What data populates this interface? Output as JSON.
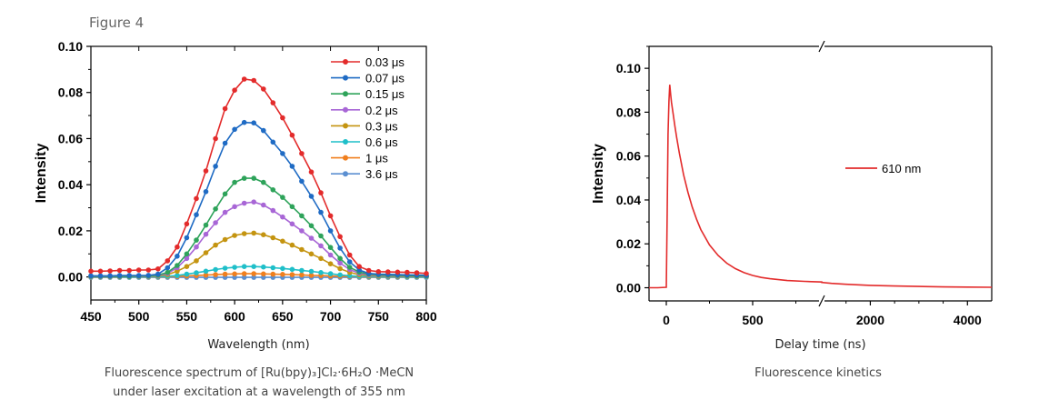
{
  "figure_label": "Figure 4",
  "chart_data": [
    {
      "type": "line",
      "xlabel": "Wavelength (nm)",
      "ylabel": "Intensity",
      "xlim": [
        450,
        800
      ],
      "ylim": [
        -0.01,
        0.1
      ],
      "xticks": [
        "450",
        "500",
        "550",
        "600",
        "650",
        "700",
        "750",
        "800"
      ],
      "yticks": [
        "0.00",
        "0.02",
        "0.04",
        "0.06",
        "0.08",
        "0.10"
      ],
      "legend_position": "top-right",
      "x": [
        450,
        460,
        470,
        480,
        490,
        500,
        510,
        520,
        530,
        540,
        550,
        560,
        570,
        580,
        590,
        600,
        610,
        620,
        630,
        640,
        650,
        660,
        670,
        680,
        690,
        700,
        710,
        720,
        730,
        740,
        750,
        760,
        770,
        780,
        790,
        800
      ],
      "series": [
        {
          "name": "0.03 μs",
          "color": "#e32b2b",
          "values": [
            0.0025,
            0.0025,
            0.0026,
            0.0028,
            0.0028,
            0.003,
            0.003,
            0.0035,
            0.007,
            0.013,
            0.023,
            0.034,
            0.046,
            0.06,
            0.073,
            0.081,
            0.0858,
            0.0852,
            0.0815,
            0.0755,
            0.069,
            0.0615,
            0.0535,
            0.0455,
            0.0365,
            0.0265,
            0.0175,
            0.0095,
            0.0045,
            0.0028,
            0.0023,
            0.0022,
            0.0021,
            0.002,
            0.0018,
            0.0015
          ]
        },
        {
          "name": "0.07 μs",
          "color": "#1f6bc4",
          "values": [
            0.0005,
            0.0005,
            0.0005,
            0.0006,
            0.0006,
            0.0006,
            0.0007,
            0.0012,
            0.004,
            0.009,
            0.017,
            0.027,
            0.037,
            0.048,
            0.058,
            0.064,
            0.067,
            0.0668,
            0.0635,
            0.0585,
            0.0535,
            0.048,
            0.0415,
            0.035,
            0.028,
            0.02,
            0.0125,
            0.0065,
            0.003,
            0.0015,
            0.0012,
            0.0011,
            0.001,
            0.0009,
            0.0008,
            0.0007
          ]
        },
        {
          "name": "0.15 μs",
          "color": "#2ea35a",
          "values": [
            0.0003,
            0.0003,
            0.0003,
            0.0003,
            0.0003,
            0.0004,
            0.0005,
            0.0008,
            0.002,
            0.005,
            0.01,
            0.016,
            0.0225,
            0.0295,
            0.036,
            0.041,
            0.0428,
            0.0428,
            0.041,
            0.0378,
            0.0345,
            0.0305,
            0.0265,
            0.0222,
            0.0178,
            0.0128,
            0.008,
            0.0042,
            0.0021,
            0.0012,
            0.0009,
            0.0008,
            0.0007,
            0.0006,
            0.0005,
            0.0004
          ]
        },
        {
          "name": "0.2 μs",
          "color": "#a866d6",
          "values": [
            0.0002,
            0.0002,
            0.0002,
            0.0002,
            0.0003,
            0.0003,
            0.0004,
            0.0006,
            0.0015,
            0.004,
            0.008,
            0.013,
            0.0185,
            0.0235,
            0.028,
            0.0305,
            0.032,
            0.0325,
            0.0312,
            0.0288,
            0.026,
            0.023,
            0.02,
            0.0168,
            0.0135,
            0.0095,
            0.006,
            0.0032,
            0.0016,
            0.0009,
            0.0007,
            0.0006,
            0.0005,
            0.0005,
            0.0004,
            0.0003
          ]
        },
        {
          "name": "0.3 μs",
          "color": "#c49410",
          "values": [
            0.0001,
            0.0001,
            0.0001,
            0.0001,
            0.0002,
            0.0002,
            0.0003,
            0.0004,
            0.001,
            0.0025,
            0.0045,
            0.007,
            0.0105,
            0.0138,
            0.0162,
            0.018,
            0.0188,
            0.019,
            0.0183,
            0.017,
            0.0155,
            0.0138,
            0.0119,
            0.01,
            0.008,
            0.0057,
            0.0036,
            0.002,
            0.001,
            0.0006,
            0.0004,
            0.0004,
            0.0003,
            0.0003,
            0.0002,
            0.0002
          ]
        },
        {
          "name": "0.6 μs",
          "color": "#1fbfc9",
          "values": [
            0.0,
            0.0,
            0.0,
            0.0,
            0.0,
            0.0,
            0.0001,
            0.0001,
            0.0003,
            0.0006,
            0.0012,
            0.0018,
            0.0025,
            0.0032,
            0.0038,
            0.0042,
            0.0045,
            0.0045,
            0.0043,
            0.004,
            0.0037,
            0.0033,
            0.0028,
            0.0024,
            0.0019,
            0.0014,
            0.0009,
            0.0005,
            0.0003,
            0.0002,
            0.0001,
            0.0001,
            0.0001,
            0.0,
            0.0,
            0.0
          ]
        },
        {
          "name": "1 μs",
          "color": "#f07f1e",
          "values": [
            0.0,
            0.0,
            0.0,
            0.0,
            0.0,
            0.0,
            0.0,
            0.0,
            0.0001,
            0.0002,
            0.0004,
            0.0006,
            0.0008,
            0.001,
            0.0012,
            0.0013,
            0.0014,
            0.0014,
            0.0013,
            0.0012,
            0.0011,
            0.001,
            0.0009,
            0.0007,
            0.0006,
            0.0004,
            0.0003,
            0.0002,
            0.0001,
            0.0,
            0.0,
            0.0,
            0.0,
            0.0,
            0.0,
            0.0
          ]
        },
        {
          "name": "3.6 μs",
          "color": "#5b8fd1",
          "values": [
            -0.0002,
            -0.0002,
            -0.0002,
            -0.0002,
            -0.0002,
            -0.0002,
            -0.0002,
            -0.0002,
            -0.0002,
            -0.0002,
            -0.0002,
            -0.0002,
            -0.0002,
            -0.0002,
            -0.0002,
            -0.0002,
            -0.0002,
            -0.0002,
            -0.0002,
            -0.0002,
            -0.0002,
            -0.0002,
            -0.0002,
            -0.0002,
            -0.0002,
            -0.0002,
            -0.0002,
            -0.0002,
            -0.0002,
            -0.0002,
            -0.0002,
            -0.0002,
            -0.0002,
            -0.0002,
            -0.0002,
            -0.0002
          ]
        }
      ],
      "caption_line1": "Fluorescence spectrum of [Ru(bpy)₃]Cl₂·6H₂O ·MeCN",
      "caption_line2": "under laser excitation at a wavelength of 355 nm"
    },
    {
      "type": "line",
      "xlabel": "Delay time (ns)",
      "ylabel": "Intensity",
      "x_axis_break": true,
      "xlim": [
        -100,
        4500
      ],
      "ylim": [
        -0.006,
        0.11
      ],
      "xticks": [
        "0",
        "500",
        "2000",
        "4000"
      ],
      "yticks": [
        "0.00",
        "0.02",
        "0.04",
        "0.06",
        "0.08",
        "0.10"
      ],
      "legend_position": "center-right",
      "series": [
        {
          "name": "610 nm",
          "color": "#e32b2b",
          "x": [
            -100,
            -50,
            0,
            5,
            10,
            15,
            20,
            25,
            30,
            40,
            50,
            60,
            75,
            100,
            125,
            150,
            175,
            200,
            250,
            300,
            350,
            400,
            450,
            500,
            550,
            600,
            700,
            800,
            900,
            1000,
            1200,
            1500,
            2000,
            2500,
            3000,
            3500,
            4000,
            4500
          ],
          "y": [
            0.0,
            0.0,
            0.0002,
            0.035,
            0.07,
            0.085,
            0.0925,
            0.088,
            0.0845,
            0.079,
            0.0735,
            0.0685,
            0.0615,
            0.0515,
            0.0435,
            0.0368,
            0.0312,
            0.0265,
            0.0195,
            0.0147,
            0.0112,
            0.0087,
            0.0069,
            0.0056,
            0.0047,
            0.0041,
            0.0033,
            0.0029,
            0.0026,
            0.0024,
            0.002,
            0.0016,
            0.0011,
            0.0008,
            0.0006,
            0.0004,
            0.0003,
            0.0002
          ]
        }
      ],
      "caption": "Fluorescence kinetics"
    }
  ]
}
